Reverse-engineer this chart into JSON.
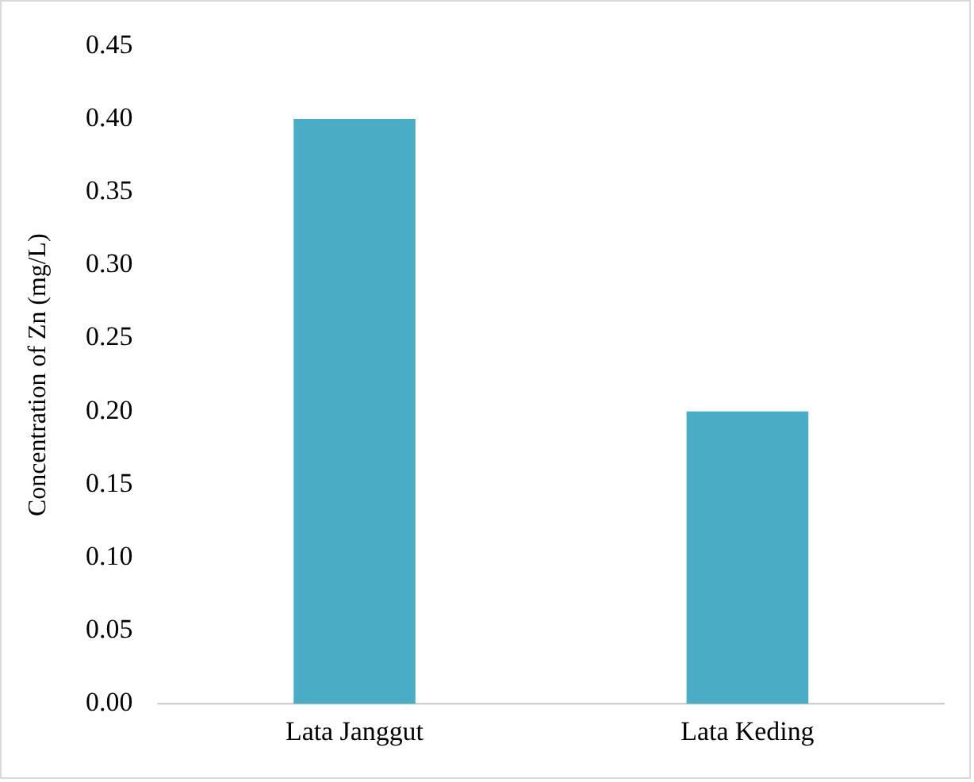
{
  "chart_data": {
    "type": "bar",
    "ylabel": "Concentration of Zn (mg/L)",
    "categories": [
      "Lata Janggut",
      "Lata Keding"
    ],
    "values": [
      0.4,
      0.2
    ],
    "color": "#4bacc6",
    "ylim": [
      0,
      0.45
    ],
    "yticks": [
      {
        "value": 0,
        "label": "0.00"
      },
      {
        "value": 0.05,
        "label": "0.05"
      },
      {
        "value": 0.1,
        "label": "0.10"
      },
      {
        "value": 0.15,
        "label": "0.15"
      },
      {
        "value": 0.2,
        "label": "0.20"
      },
      {
        "value": 0.25,
        "label": "0.25"
      },
      {
        "value": 0.3,
        "label": "0.30"
      },
      {
        "value": 0.35,
        "label": "0.35"
      },
      {
        "value": 0.4,
        "label": "0.40"
      },
      {
        "value": 0.45,
        "label": "0.45"
      }
    ],
    "grid": false,
    "legend": false
  }
}
